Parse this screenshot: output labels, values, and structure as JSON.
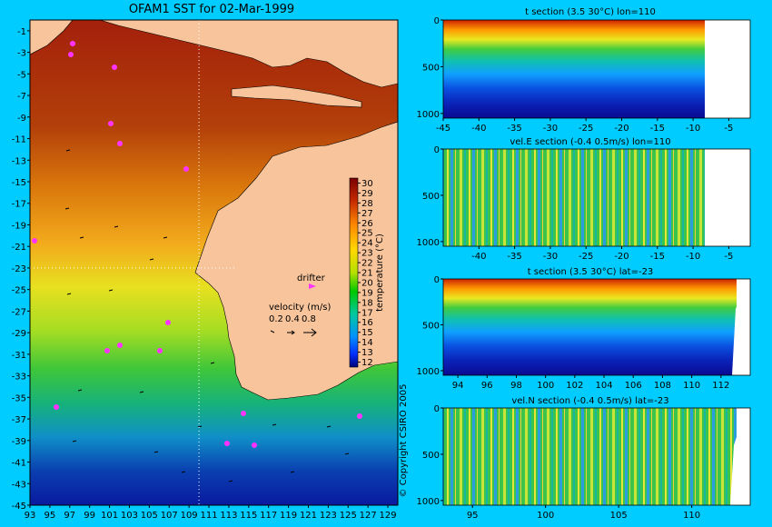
{
  "map": {
    "title": "OFAM1 SST for 02-Mar-1999",
    "x_ticks": [
      "93",
      "95",
      "97",
      "99",
      "101",
      "103",
      "105",
      "107",
      "109",
      "111",
      "113",
      "115",
      "117",
      "119",
      "121",
      "123",
      "125",
      "127",
      "129"
    ],
    "y_ticks": [
      "-1",
      "-3",
      "-5",
      "-7",
      "-9",
      "-11",
      "-13",
      "-15",
      "-17",
      "-19",
      "-21",
      "-23",
      "-25",
      "-27",
      "-29",
      "-31",
      "-33",
      "-35",
      "-37",
      "-39",
      "-41",
      "-43",
      "-45"
    ],
    "crosshair": {
      "lon": 110,
      "lat": -23
    },
    "colorbar_ticks": [
      "30",
      "29",
      "28",
      "27",
      "26",
      "25",
      "24",
      "23",
      "22",
      "21",
      "20",
      "19",
      "18",
      "17",
      "16",
      "15",
      "14",
      "13",
      "12"
    ],
    "colorbar_label": "temperature (°C)",
    "drifter_label": "drifter",
    "velocity_label": "velocity (m/s)",
    "velocity_scale": [
      "0.2",
      "0.4",
      "0.8"
    ],
    "copyright": "© Copyright CSIRO 2005"
  },
  "colors": {
    "background": "#00ccff",
    "land": "#f7c49b",
    "drifter": "#ff33ff",
    "depth_axis_bg": "#ffffff"
  },
  "chart_data": [
    {
      "type": "heatmap",
      "title": "OFAM1 SST for 02-Mar-1999",
      "xlim": [
        93,
        130
      ],
      "ylim": [
        -45,
        0
      ],
      "colorbar_range": [
        12,
        30
      ]
    },
    {
      "type": "heatmap",
      "title": "t section (3.5     30°C) lon=110",
      "x_ticks": [
        "-45",
        "-40",
        "-35",
        "-30",
        "-25",
        "-20",
        "-15",
        "-10",
        "-5"
      ],
      "y_ticks": [
        "0",
        "500",
        "1000"
      ],
      "xlim": [
        -45,
        -2
      ],
      "ylim": [
        1050,
        0
      ],
      "data_edge": -8
    },
    {
      "type": "heatmap",
      "title": "vel.E section (-0.4     0.5m/s) lon=110",
      "x_ticks": [
        "-40",
        "-35",
        "-30",
        "-25",
        "-20",
        "-15",
        "-10",
        "-5"
      ],
      "y_ticks": [
        "0",
        "500",
        "1000"
      ],
      "xlim": [
        -45,
        -2
      ],
      "ylim": [
        1050,
        0
      ],
      "data_edge": -8
    },
    {
      "type": "heatmap",
      "title": "t section (3.5     30°C) lat=-23",
      "x_ticks": [
        "94",
        "96",
        "98",
        "100",
        "102",
        "104",
        "106",
        "108",
        "110",
        "112"
      ],
      "y_ticks": [
        "0",
        "500",
        "1000"
      ],
      "xlim": [
        93,
        114
      ],
      "ylim": [
        1050,
        0
      ],
      "data_edge": 113
    },
    {
      "type": "heatmap",
      "title": "vel.N section (-0.4     0.5m/s) lat=-23",
      "x_ticks": [
        "95",
        "100",
        "105",
        "110"
      ],
      "y_ticks": [
        "0",
        "500",
        "1000"
      ],
      "xlim": [
        93,
        114
      ],
      "ylim": [
        1050,
        0
      ],
      "data_edge": 113
    }
  ]
}
